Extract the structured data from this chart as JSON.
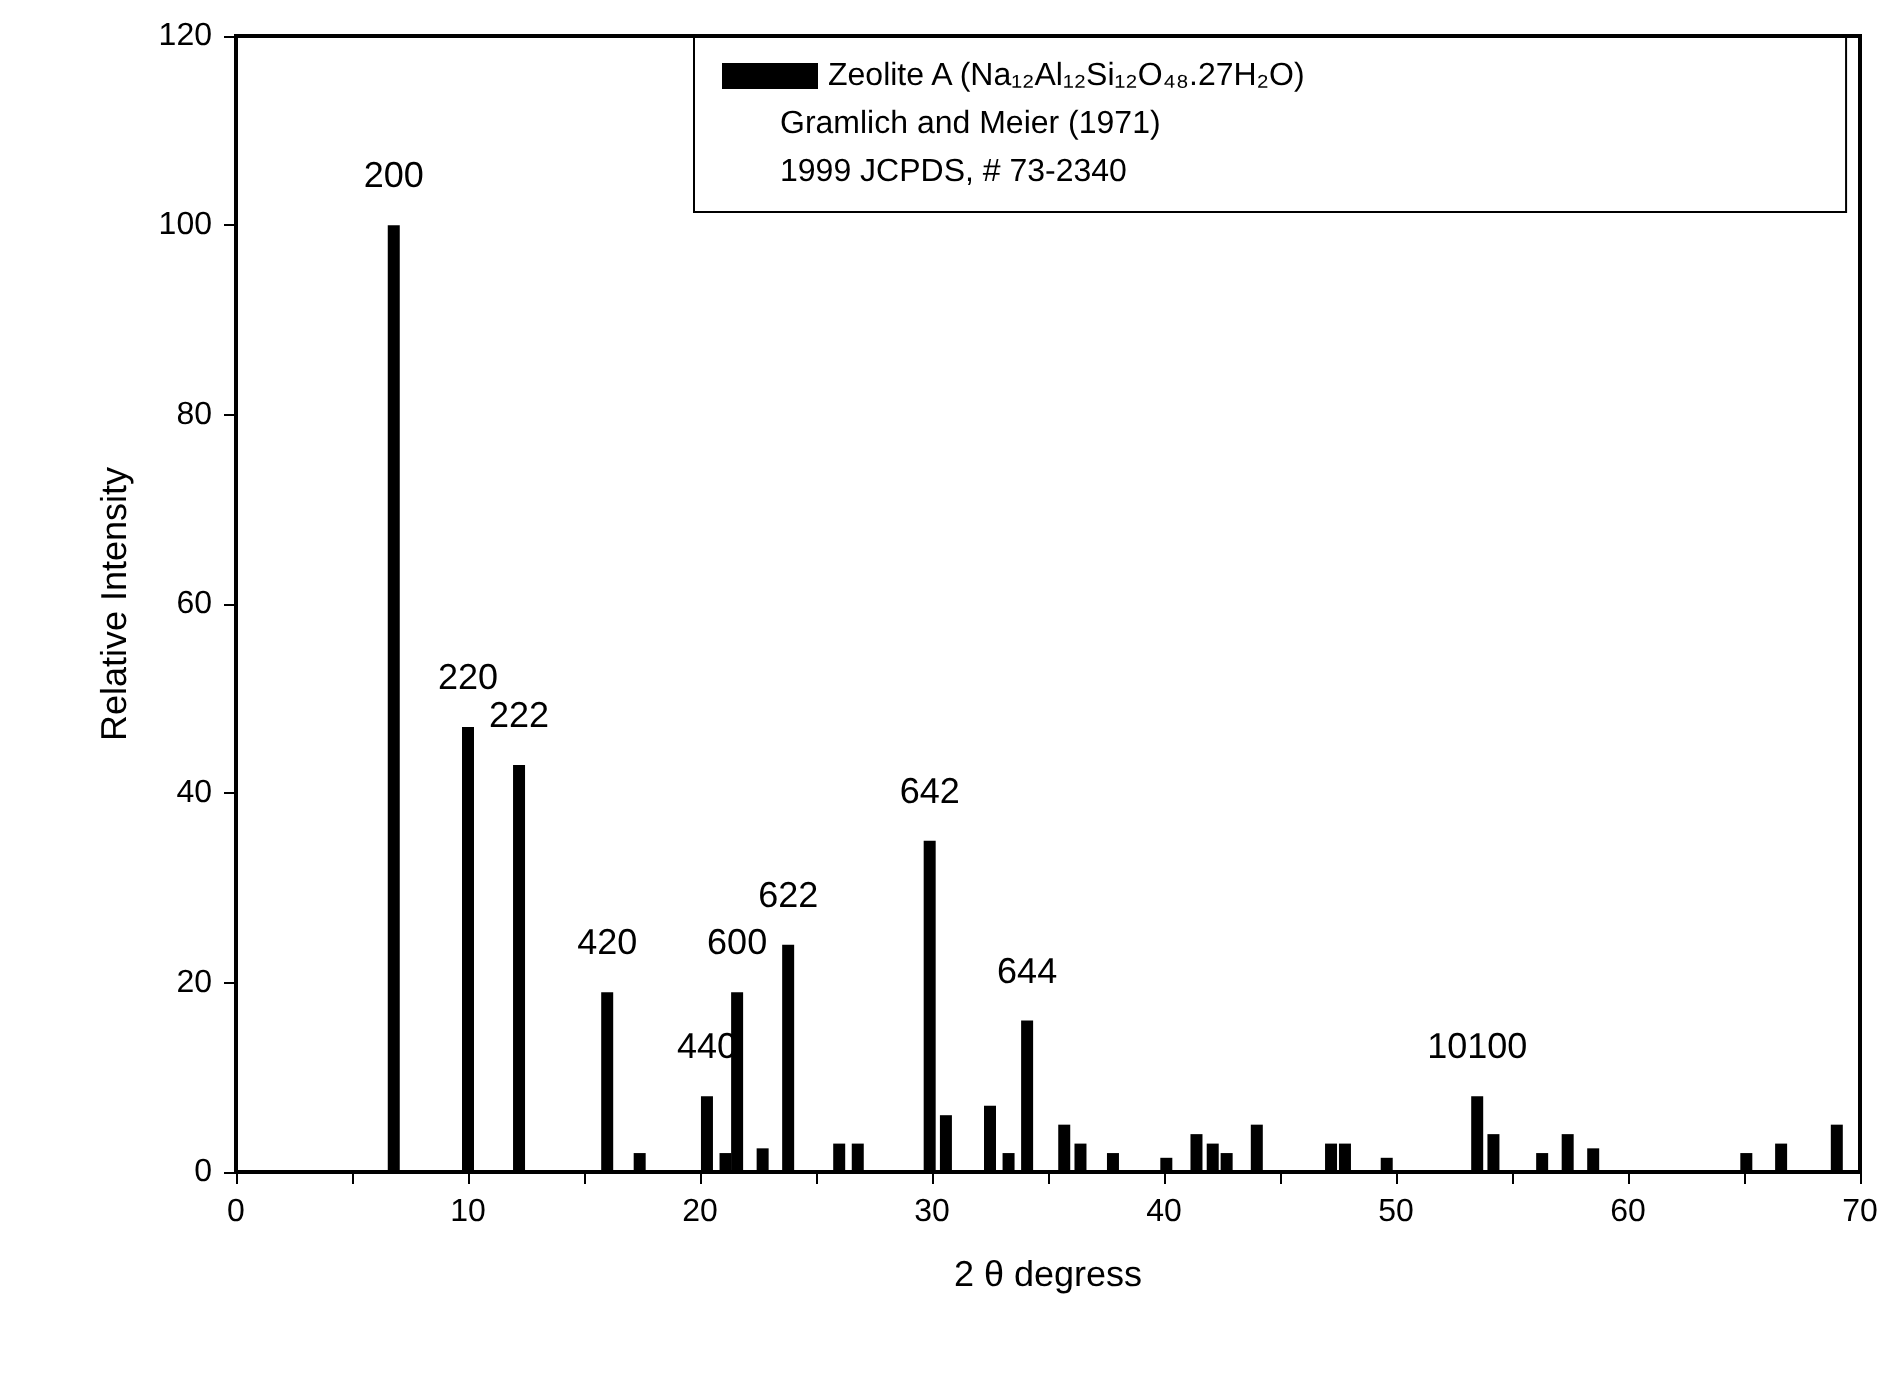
{
  "chart_data": {
    "type": "bar",
    "xlabel": "2 θ degress",
    "ylabel": "Relative Intensity",
    "x": [
      6.8,
      10.0,
      12.2,
      16.0,
      17.4,
      20.3,
      21.1,
      21.6,
      22.7,
      23.8,
      26.0,
      26.8,
      29.9,
      30.6,
      32.5,
      33.3,
      34.1,
      35.7,
      36.4,
      37.8,
      40.1,
      41.4,
      42.1,
      42.7,
      44.0,
      47.2,
      47.8,
      49.6,
      53.5,
      54.2,
      56.3,
      57.4,
      58.5,
      65.1,
      66.6,
      69.0
    ],
    "series": [
      {
        "name": "Zeolite A (Na₁₂Al₁₂Si₁₂O₄₈.27H₂O)",
        "color": "#000000",
        "values": [
          100,
          47,
          43,
          19,
          2,
          8,
          2,
          19,
          2.5,
          24,
          3,
          3,
          35,
          6,
          7,
          2,
          16,
          5,
          3,
          2,
          1.5,
          4,
          3,
          2,
          5,
          3,
          3,
          1.5,
          8,
          4,
          2,
          4,
          2.5,
          2,
          3,
          5
        ]
      }
    ],
    "xlim": [
      0,
      70
    ],
    "xticks": [
      0,
      {
        "value": 5,
        "label": null
      },
      10,
      {
        "value": 15,
        "label": null
      },
      20,
      {
        "value": 25,
        "label": null
      },
      30,
      {
        "value": 35,
        "label": null
      },
      40,
      {
        "value": 45,
        "label": null
      },
      50,
      {
        "value": 55,
        "label": null
      },
      60,
      {
        "value": 65,
        "label": null
      },
      70
    ],
    "ylim": [
      0,
      120
    ],
    "yticks": [
      0,
      20,
      40,
      60,
      80,
      100,
      120
    ],
    "grid": false,
    "legend": "top right",
    "annotations": [
      "Gramlich and Meier (1971)",
      "1999 JCPDS, # 73-2340",
      {
        "text": "200",
        "x": 6.8,
        "y": 100
      },
      {
        "text": "220",
        "x": 10.0,
        "y": 47
      },
      {
        "text": "222",
        "x": 12.2,
        "y": 43
      },
      {
        "text": "420",
        "x": 16.0,
        "y": 19
      },
      {
        "text": "440",
        "x": 20.3,
        "y": 8
      },
      {
        "text": "600",
        "x": 21.6,
        "y": 19
      },
      {
        "text": "622",
        "x": 23.8,
        "y": 24
      },
      {
        "text": "642",
        "x": 29.9,
        "y": 35
      },
      {
        "text": "644",
        "x": 34.1,
        "y": 16
      },
      {
        "text": "10100",
        "x": 53.5,
        "y": 8
      }
    ]
  }
}
